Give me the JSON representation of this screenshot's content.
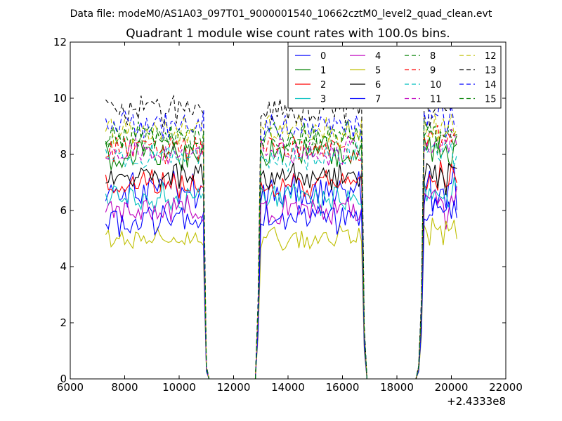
{
  "chart_data": {
    "type": "line",
    "suptitle": "Data file: modeM0/AS1A03_097T01_9000001540_10662cztM0_level2_quad_clean.evt",
    "title": "Quadrant 1 module wise count rates with 100.0s bins.",
    "xlabel": "",
    "ylabel": "",
    "x_offset_label": "+2.4333e8",
    "xlim": [
      6000,
      22000
    ],
    "ylim": [
      0,
      12
    ],
    "xticks": [
      6000,
      8000,
      10000,
      12000,
      14000,
      16000,
      18000,
      20000,
      22000
    ],
    "xtick_labels": [
      "6000",
      "8000",
      "10000",
      "12000",
      "14000",
      "16000",
      "18000",
      "20000",
      "22000"
    ],
    "yticks": [
      0,
      2,
      4,
      6,
      8,
      10,
      12
    ],
    "ytick_labels": [
      "0",
      "2",
      "4",
      "6",
      "8",
      "10",
      "12"
    ],
    "legend_location": "top-right",
    "legend_columns": 4,
    "x_start": 7300,
    "bin": 100,
    "intervals": [
      {
        "start": 7300,
        "end": 10900
      },
      {
        "start": 13000,
        "end": 16700
      },
      {
        "start": 19000,
        "end": 20200
      }
    ],
    "gap_points": [
      {
        "x": 10900,
        "frac": 0.8
      },
      {
        "x": 11000,
        "frac": 0.05
      },
      {
        "x": 11100,
        "frac": 0.0
      },
      {
        "x": 12800,
        "frac": 0.0
      },
      {
        "x": 12900,
        "frac": 0.3
      },
      {
        "x": 16800,
        "frac": 0.2
      },
      {
        "x": 16900,
        "frac": 0.0
      },
      {
        "x": 18700,
        "frac": 0.0
      },
      {
        "x": 18800,
        "frac": 0.05
      },
      {
        "x": 18900,
        "frac": 0.3
      }
    ],
    "series": [
      {
        "name": "0",
        "color": "#0000ff",
        "style": "solid",
        "level": 6.7,
        "amp": 0.55
      },
      {
        "name": "1",
        "color": "#008000",
        "style": "solid",
        "level": 8.0,
        "amp": 0.5
      },
      {
        "name": "2",
        "color": "#ff0000",
        "style": "solid",
        "level": 6.9,
        "amp": 0.4
      },
      {
        "name": "3",
        "color": "#00bfbf",
        "style": "solid",
        "level": 6.4,
        "amp": 0.45
      },
      {
        "name": "4",
        "color": "#bf00bf",
        "style": "solid",
        "level": 6.0,
        "amp": 0.45
      },
      {
        "name": "5",
        "color": "#bfbf00",
        "style": "solid",
        "level": 5.0,
        "amp": 0.35
      },
      {
        "name": "6",
        "color": "#000000",
        "style": "solid",
        "level": 7.2,
        "amp": 0.4
      },
      {
        "name": "7",
        "color": "#0000ff",
        "style": "solid",
        "level": 5.7,
        "amp": 0.45
      },
      {
        "name": "8",
        "color": "#008000",
        "style": "dashed",
        "level": 8.5,
        "amp": 0.45
      },
      {
        "name": "9",
        "color": "#ff0000",
        "style": "dashed",
        "level": 8.2,
        "amp": 0.4
      },
      {
        "name": "10",
        "color": "#00bfbf",
        "style": "dashed",
        "level": 7.9,
        "amp": 0.4
      },
      {
        "name": "11",
        "color": "#bf00bf",
        "style": "dashed",
        "level": 8.1,
        "amp": 0.4
      },
      {
        "name": "12",
        "color": "#bfbf00",
        "style": "dashed",
        "level": 8.8,
        "amp": 0.45
      },
      {
        "name": "13",
        "color": "#000000",
        "style": "dashed",
        "level": 9.6,
        "amp": 0.45
      },
      {
        "name": "14",
        "color": "#0000ff",
        "style": "dashed",
        "level": 9.0,
        "amp": 0.45
      },
      {
        "name": "15",
        "color": "#008000",
        "style": "dashed",
        "level": 8.6,
        "amp": 0.45
      }
    ]
  }
}
